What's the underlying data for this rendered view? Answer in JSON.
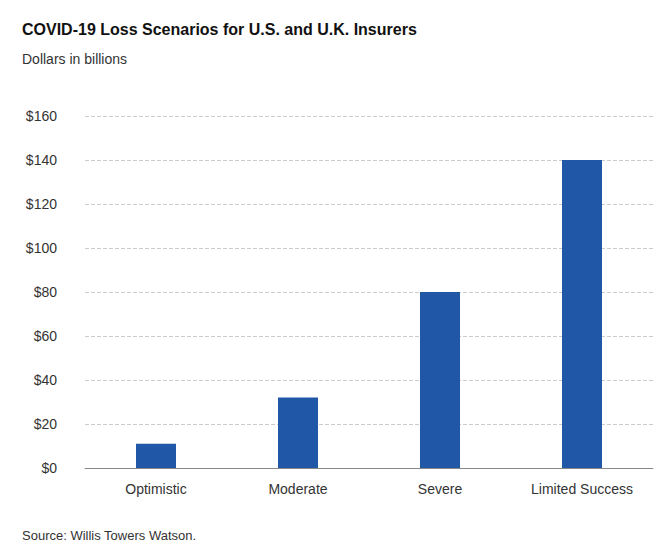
{
  "chart_data": {
    "type": "bar",
    "title": "COVID-19 Loss Scenarios for U.S. and U.K. Insurers",
    "subtitle": "Dollars in billions",
    "source": "Source: Willis Towers Watson.",
    "categories": [
      "Optimistic",
      "Moderate",
      "Severe",
      "Limited Success"
    ],
    "values": [
      11,
      32,
      80,
      140
    ],
    "color": "#2157a7",
    "ylim": [
      0,
      160
    ],
    "yticks": [
      {
        "value": 0,
        "label": "$0"
      },
      {
        "value": 20,
        "label": "$20"
      },
      {
        "value": 40,
        "label": "$40"
      },
      {
        "value": 60,
        "label": "$60"
      },
      {
        "value": 80,
        "label": "$80"
      },
      {
        "value": 100,
        "label": "$100"
      },
      {
        "value": 120,
        "label": "$120"
      },
      {
        "value": 140,
        "label": "$140"
      },
      {
        "value": 160,
        "label": "$160"
      }
    ],
    "grid": true
  }
}
